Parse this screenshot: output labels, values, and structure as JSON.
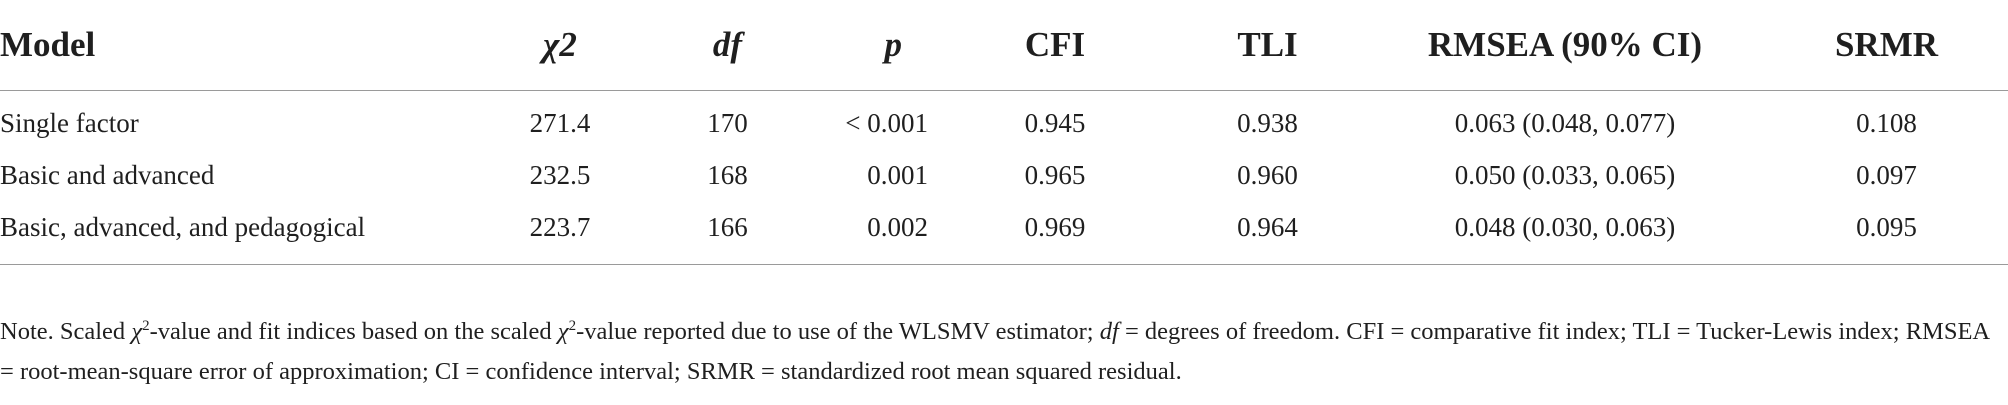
{
  "table": {
    "headers": {
      "model": "Model",
      "chi2": "χ2",
      "df": "df",
      "p": "p",
      "cfi": "CFI",
      "tli": "TLI",
      "rmsea": "RMSEA (90% CI)",
      "srmr": "SRMR"
    },
    "rows": [
      {
        "model": "Single factor",
        "chi2": "271.4",
        "df": "170",
        "p": "< 0.001",
        "cfi": "0.945",
        "tli": "0.938",
        "rmsea": "0.063 (0.048, 0.077)",
        "srmr": "0.108"
      },
      {
        "model": "Basic and advanced",
        "chi2": "232.5",
        "df": "168",
        "p": "0.001",
        "cfi": "0.965",
        "tli": "0.960",
        "rmsea": "0.050 (0.033, 0.065)",
        "srmr": "0.097"
      },
      {
        "model": "Basic, advanced, and pedagogical",
        "chi2": "223.7",
        "df": "166",
        "p": "0.002",
        "cfi": "0.969",
        "tli": "0.964",
        "rmsea": "0.048 (0.030, 0.063)",
        "srmr": "0.095"
      }
    ]
  },
  "note": {
    "part1": "Note. Scaled ",
    "chi_symbol_1": "χ",
    "sup_1": "2",
    "part2": "-value and fit indices based on the scaled ",
    "chi_symbol_2": "χ",
    "sup_2": "2",
    "part3": "-value reported due to use of the WLSMV estimator; ",
    "df_italic": "df",
    "part4": " = degrees of freedom. CFI = comparative fit index; TLI = Tucker-Lewis index; RMSEA = root-mean-square error of approximation; CI = confidence interval; SRMR = standardized root mean squared residual."
  }
}
